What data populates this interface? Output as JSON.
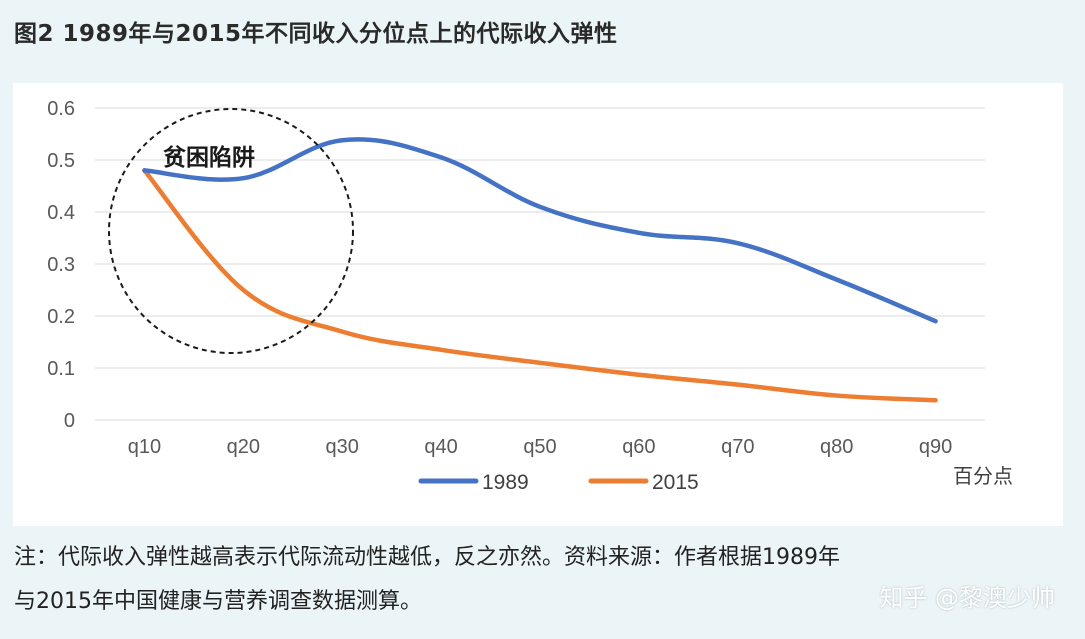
{
  "figure": {
    "title": "图2 1989年与2015年不同收入分位点上的代际收入弹性",
    "note_line1": "注：代际收入弹性越高表示代际流动性越低，反之亦然。资料来源：作者根据1989年",
    "note_line2": "与2015年中国健康与营养调查数据测算。",
    "watermark": "知乎 @黎澳少帅"
  },
  "chart_data": {
    "type": "line",
    "categories": [
      "q10",
      "q20",
      "q30",
      "q40",
      "q50",
      "q60",
      "q70",
      "q80",
      "q90"
    ],
    "series": [
      {
        "name": "1989",
        "color": "#4472c4",
        "values": [
          0.48,
          0.465,
          0.538,
          0.505,
          0.41,
          0.36,
          0.34,
          0.27,
          0.19
        ]
      },
      {
        "name": "2015",
        "color": "#ed7d31",
        "values": [
          0.48,
          0.25,
          0.17,
          0.135,
          0.11,
          0.087,
          0.068,
          0.047,
          0.038
        ]
      }
    ],
    "ylim": [
      0,
      0.6
    ],
    "yticks": [
      "0",
      "0.1",
      "0.2",
      "0.3",
      "0.4",
      "0.5",
      "0.6"
    ],
    "xlabel": "百分点",
    "grid": true,
    "legend": "bottom",
    "annotation": {
      "text": "贫困陷阱"
    }
  }
}
